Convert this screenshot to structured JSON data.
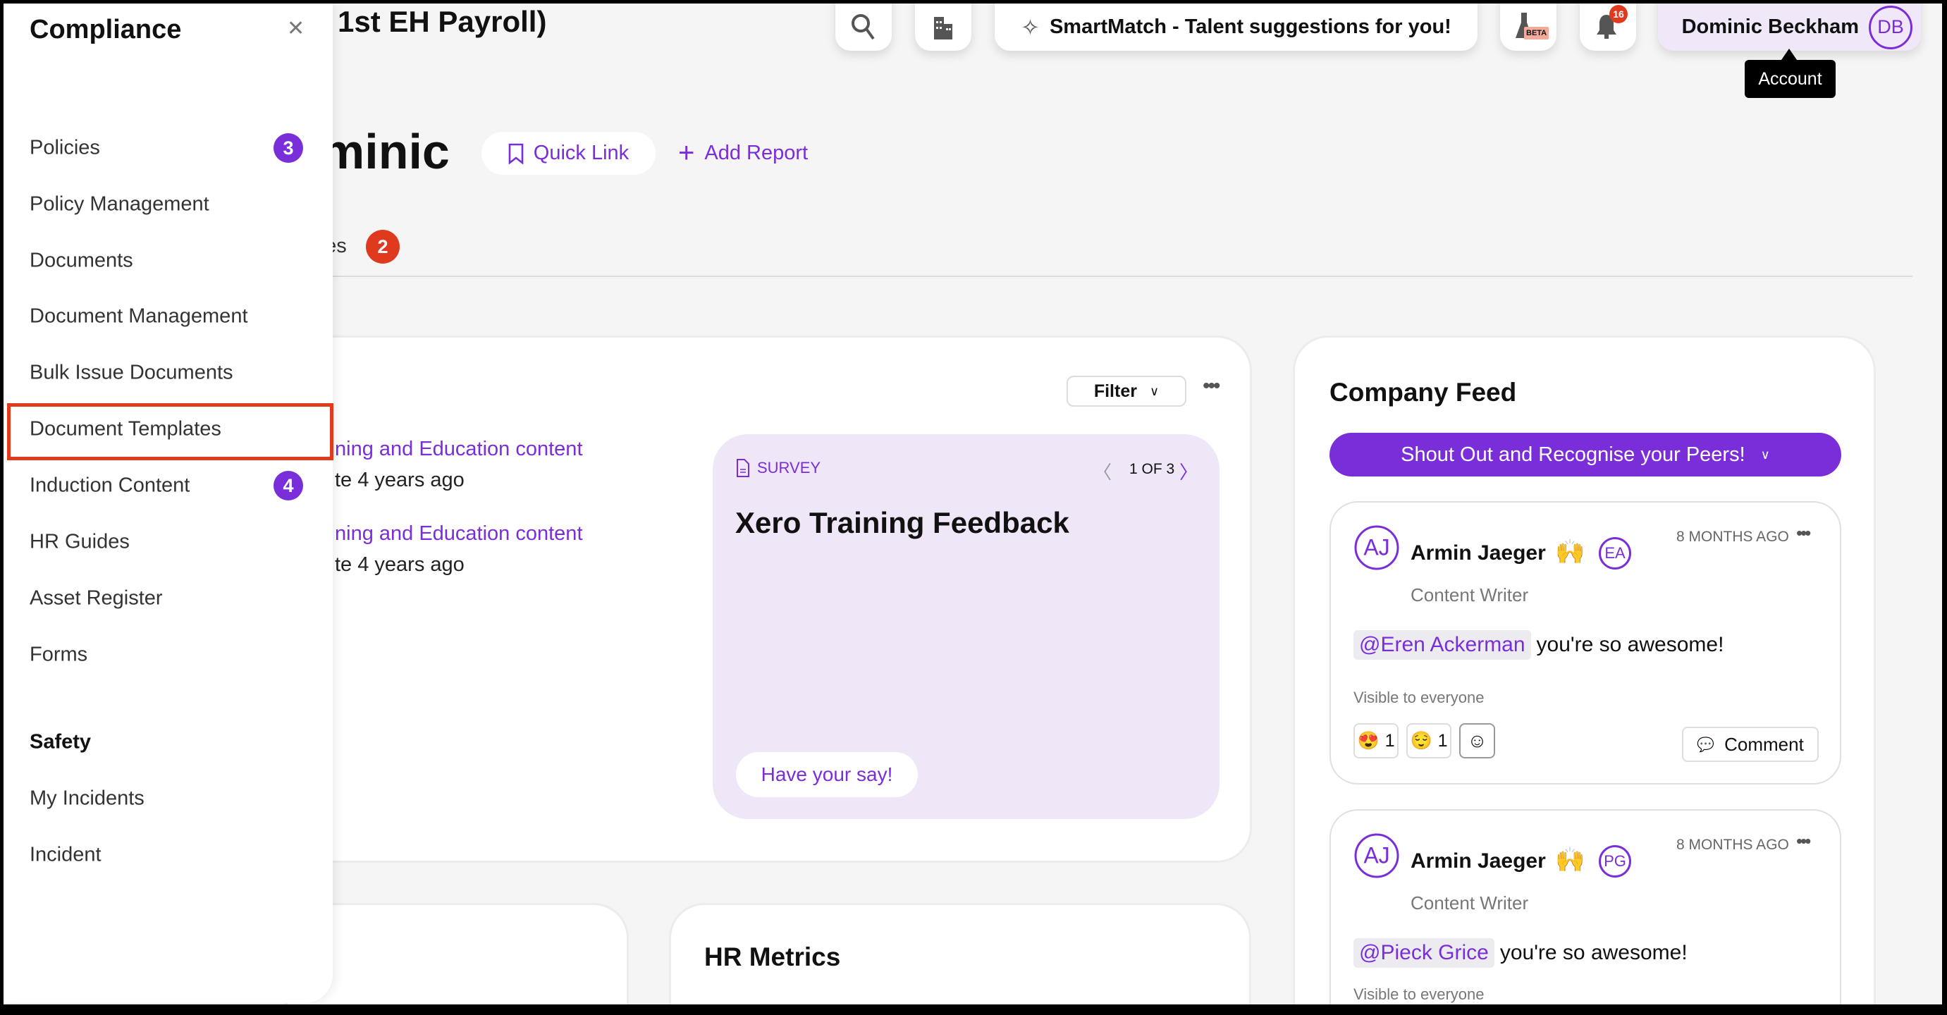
{
  "sidebar": {
    "title": "Compliance",
    "items": [
      {
        "label": "Policies",
        "badge": "3"
      },
      {
        "label": "Policy Management"
      },
      {
        "label": "Documents"
      },
      {
        "label": "Document Management"
      },
      {
        "label": "Bulk Issue Documents"
      },
      {
        "label": "Document Templates",
        "highlighted": true
      },
      {
        "label": "Induction Content",
        "badge": "4"
      },
      {
        "label": "HR Guides"
      },
      {
        "label": "Asset Register"
      },
      {
        "label": "Forms"
      }
    ],
    "section2_title": "Safety",
    "items2": [
      {
        "label": "My Incidents"
      },
      {
        "label": "Incident"
      }
    ]
  },
  "header": {
    "title": "1st EH Payroll)",
    "smartmatch": "SmartMatch - Talent suggestions for you!",
    "beta_label": "BETA",
    "notifications_count": "16",
    "account_name": "Dominic Beckham",
    "account_initials": "DB",
    "tooltip": "Account"
  },
  "greeting": {
    "text": "minic",
    "quick_link": "Quick Link",
    "add_report": "Add Report"
  },
  "tabs": {
    "partial_label": "des",
    "badge": "2"
  },
  "tasks_card": {
    "filter_label": "Filter",
    "items": [
      {
        "title": "ning and Education content",
        "meta": "te 4 years ago"
      },
      {
        "title": "ning and Education content",
        "meta": "te 4 years ago"
      }
    ],
    "survey": {
      "type": "SURVEY",
      "pager": "1 OF 3",
      "title": "Xero Training Feedback",
      "cta": "Have your say!"
    }
  },
  "hr_metrics": {
    "title": "HR Metrics"
  },
  "feed": {
    "title": "Company Feed",
    "shout_out": "Shout Out and Recognise your Peers!",
    "posts": [
      {
        "initials": "AJ",
        "author": "Armin Jaeger",
        "emoji": "🙌",
        "recipient_initials": "EA",
        "time": "8 MONTHS AGO",
        "role": "Content Writer",
        "mention": "@Eren Ackerman",
        "message": "you're so awesome!",
        "visibility": "Visible to everyone",
        "reactions": [
          {
            "emoji": "😍",
            "count": "1"
          },
          {
            "emoji": "😌",
            "count": "1"
          }
        ],
        "comment_label": "Comment"
      },
      {
        "initials": "AJ",
        "author": "Armin Jaeger",
        "emoji": "🙌",
        "recipient_initials": "PG",
        "time": "8 MONTHS AGO",
        "role": "Content Writer",
        "mention": "@Pieck Grice",
        "message": "you're so awesome!",
        "visibility": "Visible to everyone"
      }
    ]
  },
  "colors": {
    "accent": "#7a2ed9",
    "badge_red": "#e03a1e",
    "highlight_border": "#e03a1e",
    "survey_bg": "#efe7f8",
    "account_bg": "#f0e8f8"
  }
}
